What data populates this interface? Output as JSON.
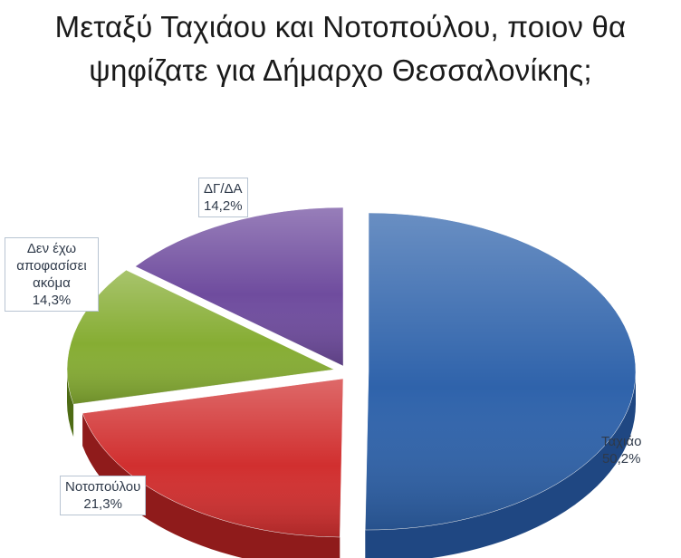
{
  "title_line1": "Μεταξύ Ταχιάου και Νοτοπούλου, ποιον θα",
  "title_line2": "ψηφίζατε για Δήμαρχο Θεσσαλονίκης;",
  "chart_data": {
    "type": "pie",
    "title": "Μεταξύ Ταχιάου και Νοτοπούλου, ποιον θα ψηφίζατε για Δήμαρχο Θεσσαλονίκης;",
    "slices": [
      {
        "name": "Ταχιάο",
        "value": 50.2,
        "label": "50,2%",
        "color": "#2f63ab",
        "side": "#1f4782"
      },
      {
        "name": "Νοτοπούλου",
        "value": 21.3,
        "label": "21,3%",
        "color": "#d12f2f",
        "side": "#8f1b1b"
      },
      {
        "name": "Δεν έχω αποφασίσει ακόμα",
        "value": 14.3,
        "label": "14,3%",
        "color": "#86ad33",
        "side": "#4d6b14"
      },
      {
        "name": "ΔΓ/ΔΑ",
        "value": 14.2,
        "label": "14,2%",
        "color": "#6f4c9e",
        "side": "#4a3070"
      }
    ],
    "legend": "none"
  }
}
